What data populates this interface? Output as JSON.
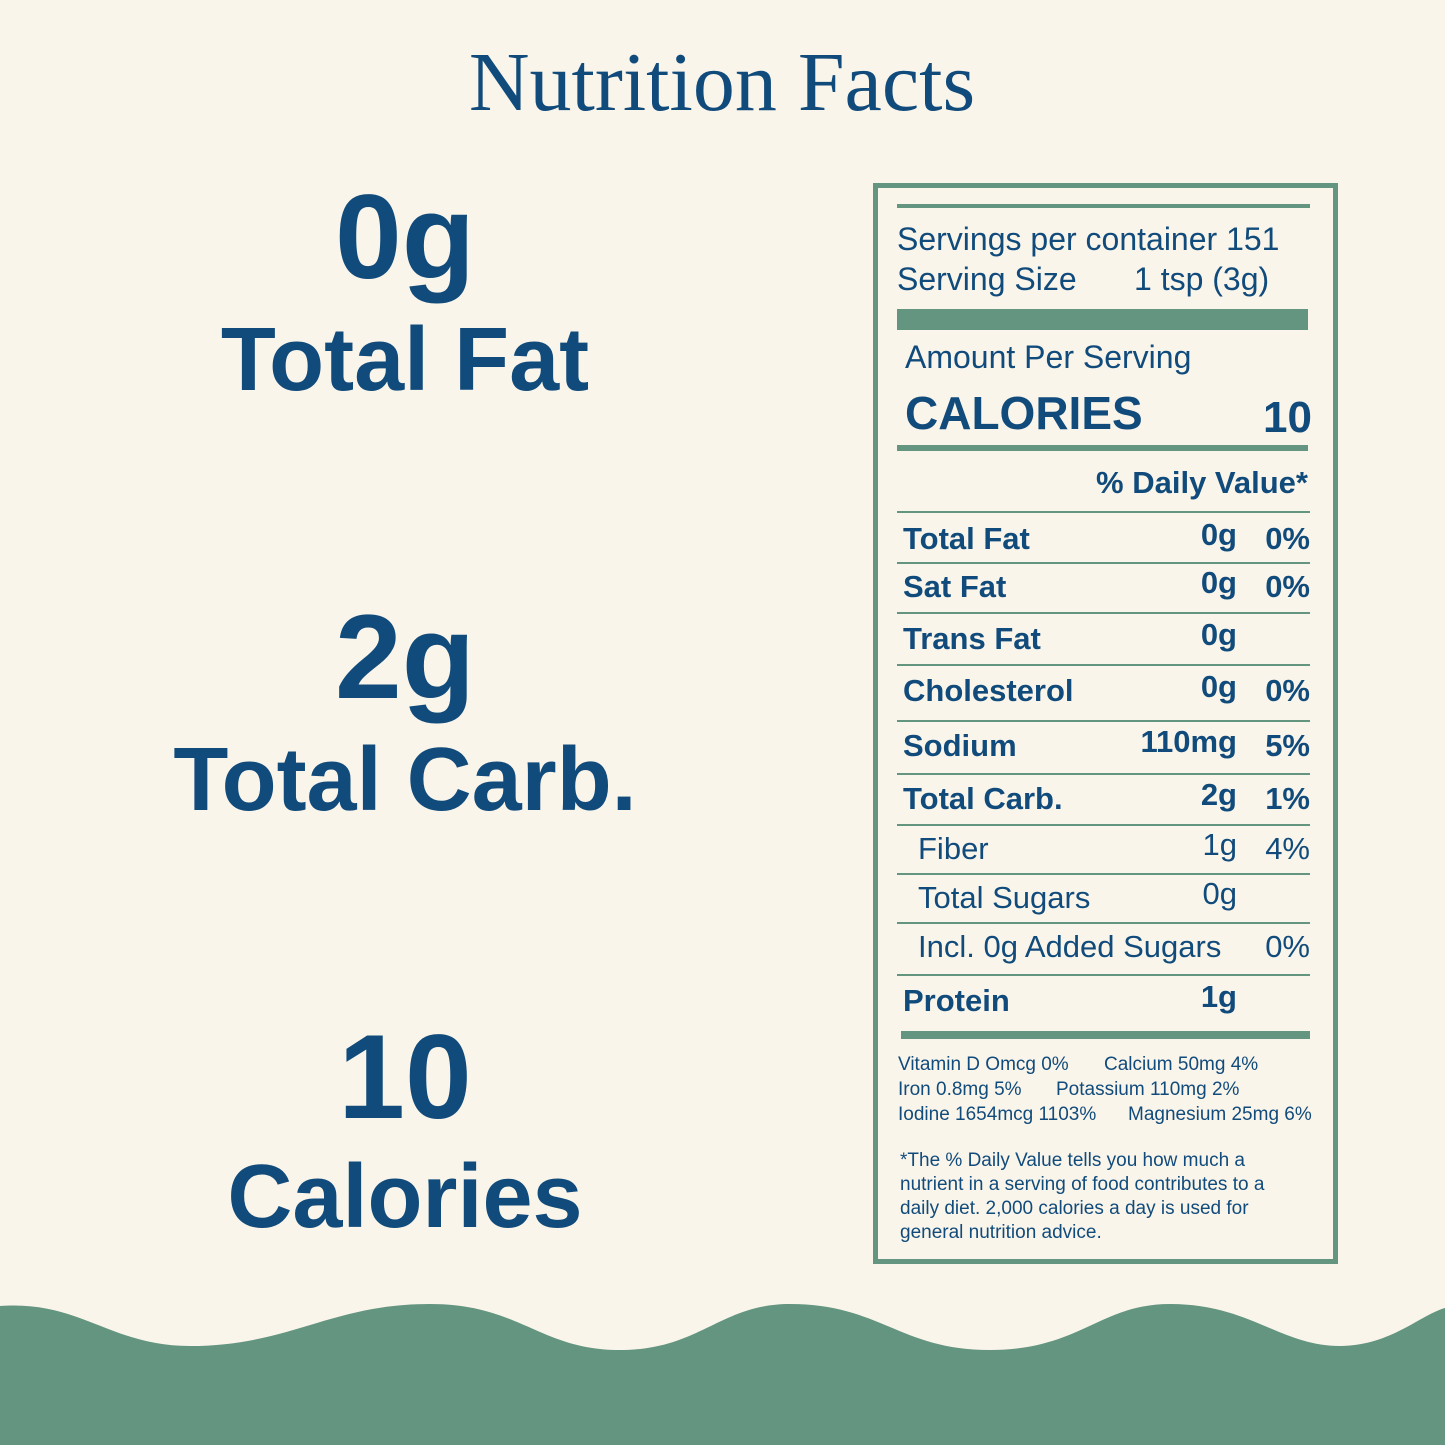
{
  "title": "Nutrition Facts",
  "highlights": [
    {
      "value": "0g",
      "label": "Total Fat"
    },
    {
      "value": "2g",
      "label": "Total Carb."
    },
    {
      "value": "10",
      "label": "Calories"
    }
  ],
  "label": {
    "servings": "Servings per container 151",
    "serving_size_label": "Serving Size",
    "serving_size_value": "1 tsp (3g)",
    "amount_per_serving": "Amount Per Serving",
    "calories_label": "CALORIES",
    "calories_value": "10",
    "dv_header": "% Daily Value*",
    "rows": [
      {
        "name": "Total Fat",
        "amount": "0g",
        "dv": "0%"
      },
      {
        "name": "Sat Fat",
        "amount": "0g",
        "dv": "0%"
      },
      {
        "name": "Trans Fat",
        "amount": "0g"
      },
      {
        "name": "Cholesterol",
        "amount": "0g",
        "dv": "0%"
      },
      {
        "name": "Sodium",
        "amount": "110mg",
        "dv": "5%"
      },
      {
        "name": "Total Carb.",
        "amount": "2g",
        "dv": "1%",
        "subrows": [
          {
            "name": "Fiber",
            "amount": "1g",
            "dv": "4%"
          },
          {
            "name": "Total Sugars",
            "amount": "0g"
          },
          {
            "name": "Incl. 0g Added Sugars",
            "dv": "0%"
          }
        ]
      },
      {
        "name": "Protein",
        "amount": "1g"
      }
    ],
    "vitamins": [
      [
        "Vitamin D Omcg 0%",
        "Calcium 50mg 4%"
      ],
      [
        "Iron 0.8mg 5%",
        "Potassium 110mg 2%"
      ],
      [
        "Iodine 1654mcg 1103%",
        "Magnesium 25mg 6%"
      ]
    ],
    "footnote": [
      "*The % Daily Value tells you how much a",
      "nutrient in a serving of food contributes to a",
      "daily diet. 2,000 calories a day is used for",
      "general nutrition advice."
    ]
  }
}
